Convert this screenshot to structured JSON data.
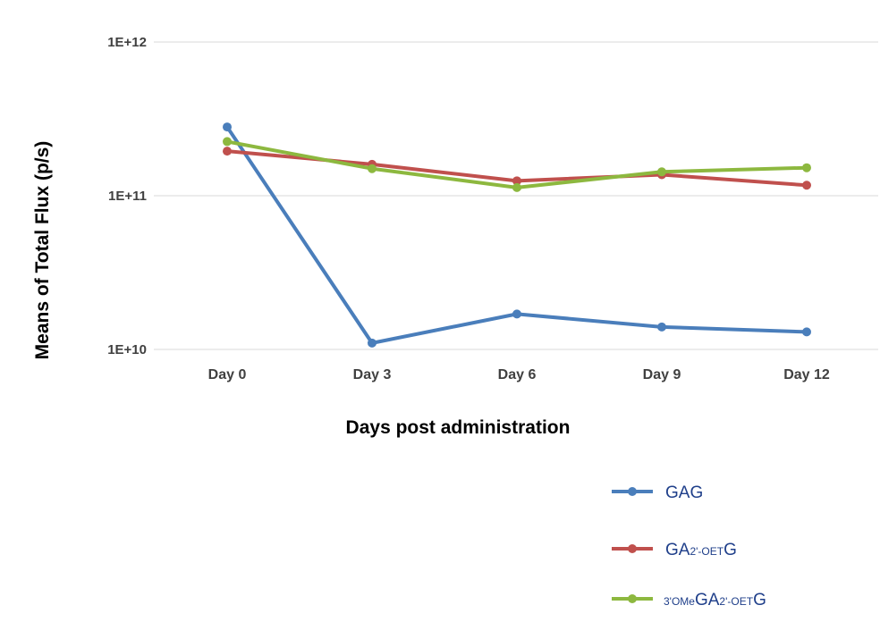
{
  "chart_data": {
    "type": "line",
    "title": "",
    "xlabel": "Days post administration",
    "ylabel": "Means of  Total Flux (p/s)",
    "yscale": "log",
    "ylim": [
      10000000000,
      1000000000000
    ],
    "yticks": [
      {
        "value": 10000000000,
        "label": "1E+10"
      },
      {
        "value": 100000000000,
        "label": "1E+11"
      },
      {
        "value": 1000000000000,
        "label": "1E+12"
      }
    ],
    "categories": [
      "Day 0",
      "Day 3",
      "Day 6",
      "Day 9",
      "Day 12"
    ],
    "grid": "horizontal",
    "legend_position": "bottom-right",
    "series": [
      {
        "name": "GAG",
        "name_parts": [
          {
            "text": "GAG",
            "size": "main"
          }
        ],
        "color": "#4a7ebb",
        "values": [
          280000000000,
          11000000000,
          17000000000,
          14000000000,
          13000000000
        ]
      },
      {
        "name": "GA2'-OETG",
        "name_parts": [
          {
            "text": "GA",
            "size": "main"
          },
          {
            "text": "2'-OET",
            "size": "sub"
          },
          {
            "text": "G",
            "size": "main"
          }
        ],
        "color": "#c0504d",
        "values": [
          195000000000,
          160000000000,
          125000000000,
          137000000000,
          117000000000
        ]
      },
      {
        "name": "3'OMeGA2'-OETG",
        "name_parts": [
          {
            "text": "3'OMe",
            "size": "sub"
          },
          {
            "text": "GA",
            "size": "main"
          },
          {
            "text": "2'-OET",
            "size": "sub"
          },
          {
            "text": "G",
            "size": "main"
          }
        ],
        "color": "#8db83f",
        "values": [
          225000000000,
          150000000000,
          113000000000,
          143000000000,
          152000000000
        ]
      }
    ]
  }
}
